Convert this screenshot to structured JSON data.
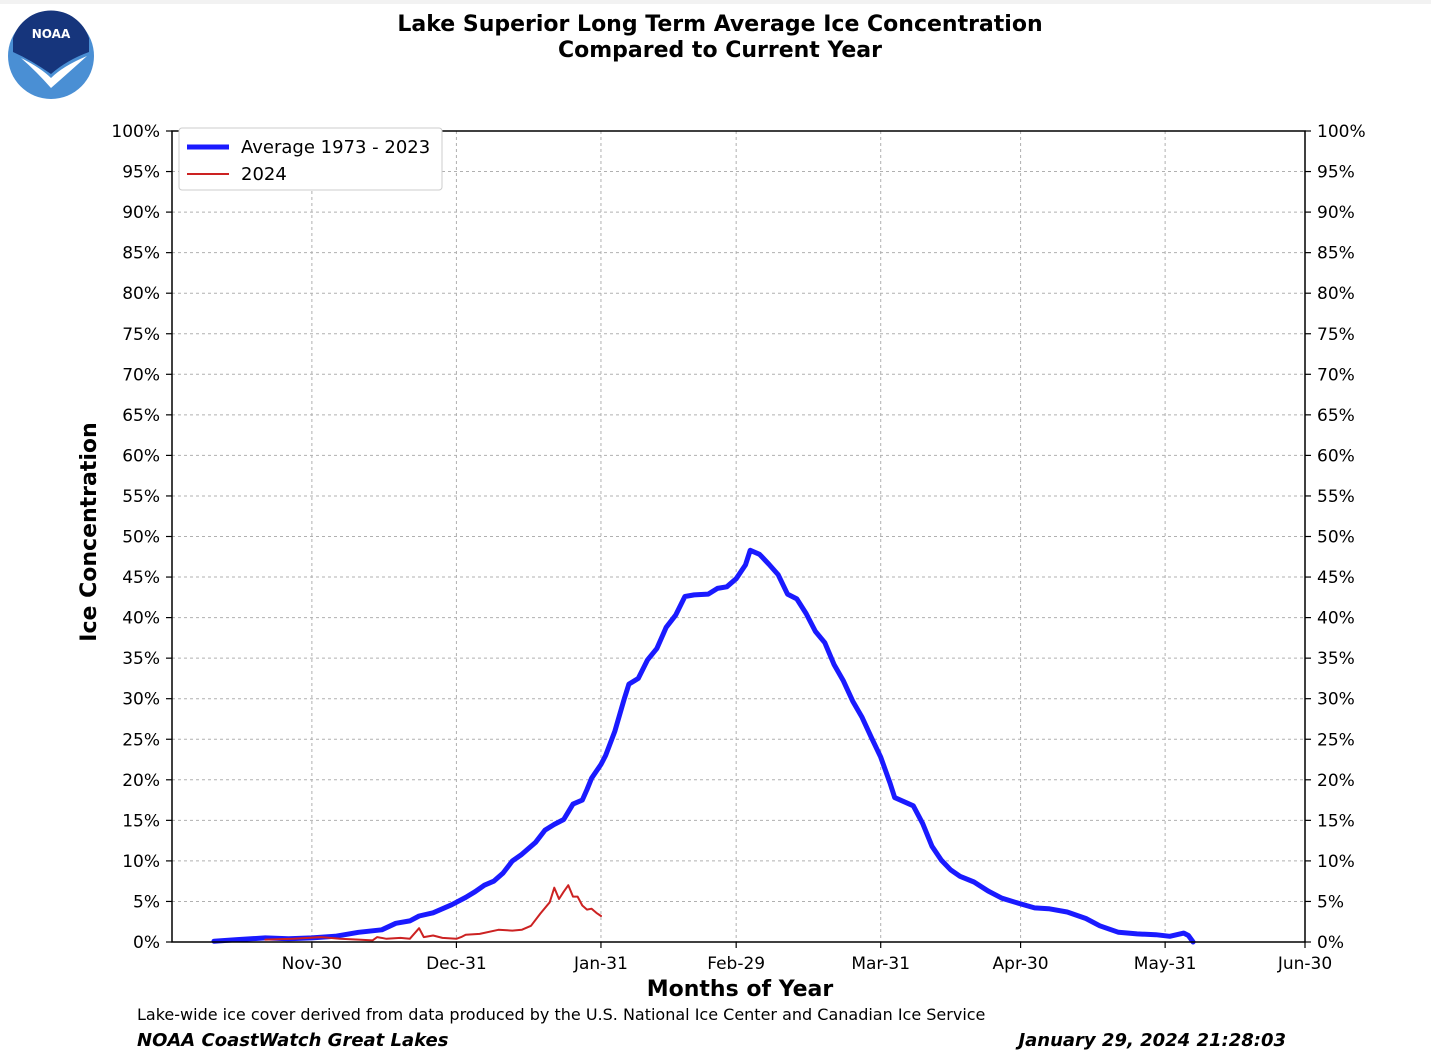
{
  "logo": {
    "text": "NOAA",
    "colors": {
      "outer": "#4a8fd4",
      "inner": "#16357c"
    }
  },
  "title_line1": "Lake Superior Long Term Average Ice Concentration",
  "title_line2": "Compared to Current Year",
  "credit": "Lake-wide ice cover derived from data produced by the U.S. National Ice Center and Canadian Ice Service",
  "source": "NOAA CoastWatch Great Lakes",
  "timestamp": "January 29, 2024 21:28:03",
  "chart_data": {
    "type": "line",
    "title": "Lake Superior Long Term Average Ice Concentration Compared to Current Year",
    "xlabel": "Months of Year",
    "ylabel": "Ice Concentration",
    "x_unit": "day of season",
    "xlim": [
      0,
      243
    ],
    "ylim": [
      0,
      100
    ],
    "xticks": [
      {
        "label": "Nov-30",
        "x": 30
      },
      {
        "label": "Dec-31",
        "x": 61
      },
      {
        "label": "Jan-31",
        "x": 92
      },
      {
        "label": "Feb-29",
        "x": 121
      },
      {
        "label": "Mar-31",
        "x": 152
      },
      {
        "label": "Apr-30",
        "x": 182
      },
      {
        "label": "May-31",
        "x": 213
      },
      {
        "label": "Jun-30",
        "x": 243
      }
    ],
    "yticks": [
      "0%",
      "5%",
      "10%",
      "15%",
      "20%",
      "25%",
      "30%",
      "35%",
      "40%",
      "45%",
      "50%",
      "55%",
      "60%",
      "65%",
      "70%",
      "75%",
      "80%",
      "85%",
      "90%",
      "95%",
      "100%"
    ],
    "grid": true,
    "legend_position": "top-left",
    "series": [
      {
        "name": "Average 1973 - 2023",
        "color": "#1a1aff",
        "points": [
          [
            9,
            0.1
          ],
          [
            14,
            0.3
          ],
          [
            20,
            0.5
          ],
          [
            25,
            0.4
          ],
          [
            30,
            0.5
          ],
          [
            35,
            0.7
          ],
          [
            40,
            1.2
          ],
          [
            45,
            1.5
          ],
          [
            48,
            2.3
          ],
          [
            51,
            2.6
          ],
          [
            53,
            3.2
          ],
          [
            56,
            3.6
          ],
          [
            60,
            4.6
          ],
          [
            63,
            5.5
          ],
          [
            65,
            6.2
          ],
          [
            67,
            7.0
          ],
          [
            69,
            7.5
          ],
          [
            71,
            8.5
          ],
          [
            73,
            10.0
          ],
          [
            75,
            10.8
          ],
          [
            78,
            12.3
          ],
          [
            80,
            13.8
          ],
          [
            82,
            14.5
          ],
          [
            84,
            15.1
          ],
          [
            86,
            17.0
          ],
          [
            88,
            17.5
          ],
          [
            89,
            18.8
          ],
          [
            90,
            20.2
          ],
          [
            92,
            21.9
          ],
          [
            93,
            23.0
          ],
          [
            95,
            26.0
          ],
          [
            97,
            30.0
          ],
          [
            98,
            31.8
          ],
          [
            100,
            32.5
          ],
          [
            102,
            34.8
          ],
          [
            104,
            36.2
          ],
          [
            106,
            38.8
          ],
          [
            108,
            40.3
          ],
          [
            110,
            42.6
          ],
          [
            112,
            42.8
          ],
          [
            115,
            42.9
          ],
          [
            117,
            43.6
          ],
          [
            119,
            43.8
          ],
          [
            121,
            44.8
          ],
          [
            123,
            46.5
          ],
          [
            124,
            48.3
          ],
          [
            126,
            47.8
          ],
          [
            128,
            46.6
          ],
          [
            130,
            45.3
          ],
          [
            132,
            42.9
          ],
          [
            134,
            42.3
          ],
          [
            136,
            40.5
          ],
          [
            138,
            38.3
          ],
          [
            140,
            36.9
          ],
          [
            142,
            34.2
          ],
          [
            144,
            32.2
          ],
          [
            146,
            29.7
          ],
          [
            148,
            27.7
          ],
          [
            150,
            25.2
          ],
          [
            152,
            22.8
          ],
          [
            154,
            19.6
          ],
          [
            155,
            17.8
          ],
          [
            157,
            17.3
          ],
          [
            159,
            16.8
          ],
          [
            161,
            14.6
          ],
          [
            163,
            11.8
          ],
          [
            165,
            10.1
          ],
          [
            167,
            8.9
          ],
          [
            169,
            8.1
          ],
          [
            172,
            7.4
          ],
          [
            175,
            6.3
          ],
          [
            178,
            5.4
          ],
          [
            182,
            4.7
          ],
          [
            185,
            4.2
          ],
          [
            188,
            4.1
          ],
          [
            192,
            3.7
          ],
          [
            196,
            2.9
          ],
          [
            199,
            2.0
          ],
          [
            203,
            1.2
          ],
          [
            207,
            1.0
          ],
          [
            211,
            0.9
          ],
          [
            214,
            0.7
          ],
          [
            217,
            1.1
          ],
          [
            218,
            0.8
          ],
          [
            219,
            0
          ]
        ]
      },
      {
        "name": "2024",
        "color": "#cc2222",
        "points": [
          [
            20,
            0.3
          ],
          [
            26,
            0.4
          ],
          [
            32,
            0.6
          ],
          [
            36,
            0.4
          ],
          [
            40,
            0.3
          ],
          [
            43,
            0.2
          ],
          [
            44,
            0.6
          ],
          [
            46,
            0.4
          ],
          [
            49,
            0.5
          ],
          [
            51,
            0.4
          ],
          [
            53,
            1.7
          ],
          [
            54,
            0.6
          ],
          [
            56,
            0.8
          ],
          [
            58,
            0.5
          ],
          [
            61,
            0.4
          ],
          [
            62,
            0.6
          ],
          [
            63,
            0.9
          ],
          [
            66,
            1.0
          ],
          [
            70,
            1.5
          ],
          [
            73,
            1.4
          ],
          [
            75,
            1.5
          ],
          [
            77,
            2.0
          ],
          [
            79,
            3.5
          ],
          [
            81,
            4.9
          ],
          [
            82,
            6.7
          ],
          [
            83,
            5.3
          ],
          [
            84,
            6.2
          ],
          [
            85,
            7.0
          ],
          [
            86,
            5.6
          ],
          [
            87,
            5.6
          ],
          [
            88,
            4.5
          ],
          [
            89,
            4.0
          ],
          [
            90,
            4.1
          ],
          [
            91,
            3.6
          ],
          [
            92,
            3.2
          ]
        ]
      }
    ]
  }
}
